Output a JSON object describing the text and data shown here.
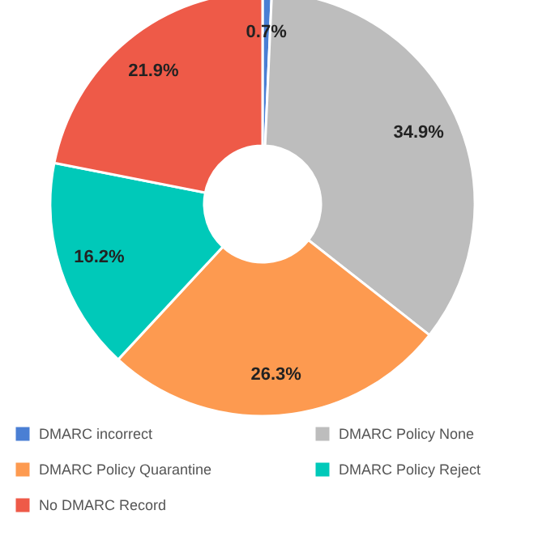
{
  "chart_data": {
    "type": "donut",
    "categories": [
      "DMARC incorrect",
      "DMARC Policy None",
      "DMARC Policy Quarantine",
      "DMARC Policy Reject",
      "No DMARC Record"
    ],
    "values": [
      0.7,
      34.9,
      26.3,
      16.2,
      21.9
    ],
    "colors": [
      "#4a7fd4",
      "#bdbdbd",
      "#fd9a50",
      "#00c9b9",
      "#ee5a48"
    ],
    "value_labels": [
      "0.7%",
      "34.9%",
      "26.3%",
      "16.2%",
      "21.9%"
    ],
    "legend": "bottom"
  }
}
